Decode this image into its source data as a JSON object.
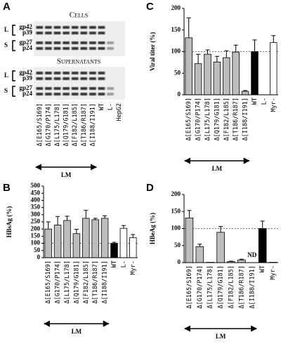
{
  "panel_a": {
    "panel": "A",
    "sections": [
      "Cells",
      "Supernatants"
    ],
    "brackets": [
      "L",
      "S"
    ],
    "markers": [
      "gp42",
      "p39",
      "gp27",
      "p24"
    ],
    "lanes": [
      "Δ[E165/S169]",
      "Δ[G170/P174]",
      "Δ[L175/L178]",
      "Δ[Q179/G181]",
      "Δ[F182/L185]",
      "Δ[T186/R187]",
      "Δ[I188/I191]",
      "WT",
      "L-",
      "HepG2"
    ],
    "group_label": "LM"
  },
  "chart_data": [
    {
      "type": "bar",
      "panel": "B",
      "ylabel": "HBsAg (%)",
      "categories": [
        "Δ[E165/S169]",
        "Δ[G170/P174]",
        "Δ[L175/L178]",
        "Δ[Q179/G181]",
        "Δ[F182/L185]",
        "Δ[T186/R187]",
        "Δ[I188/I191]",
        "WT",
        "L-",
        "Myr-"
      ],
      "values": [
        200,
        228,
        260,
        168,
        275,
        265,
        275,
        100,
        205,
        140
      ],
      "errors": [
        50,
        60,
        30,
        30,
        55,
        10,
        18,
        8,
        20,
        22
      ],
      "colors": [
        "#bdbdbd",
        "#bdbdbd",
        "#bdbdbd",
        "#bdbdbd",
        "#bdbdbd",
        "#bdbdbd",
        "#bdbdbd",
        "#000000",
        "#ffffff",
        "#ffffff"
      ],
      "ylim": [
        0,
        500
      ],
      "yticks": [
        0,
        50,
        100,
        150,
        200,
        250,
        300,
        350,
        400,
        450,
        500
      ],
      "reference_line": 100,
      "group_label": "LM"
    },
    {
      "type": "bar",
      "panel": "C",
      "ylabel": "Viral titer (%)",
      "categories": [
        "Δ[E165/S169]",
        "Δ[G170/P174]",
        "Δ[L175/L178]",
        "Δ[Q179/G181]",
        "Δ[F182/L185]",
        "Δ[T186/R187]",
        "Δ[I188/I191]",
        "WT",
        "L-",
        "Myr-"
      ],
      "values": [
        132,
        72,
        94,
        76,
        86,
        99,
        8,
        100,
        0,
        121
      ],
      "errors": [
        46,
        22,
        10,
        13,
        16,
        16,
        2,
        27,
        null,
        16
      ],
      "colors": [
        "#bdbdbd",
        "#bdbdbd",
        "#bdbdbd",
        "#bdbdbd",
        "#bdbdbd",
        "#bdbdbd",
        "#bdbdbd",
        "#000000",
        "#ffffff",
        "#ffffff"
      ],
      "ylim": [
        0,
        200
      ],
      "yticks": [
        0,
        50,
        100,
        150,
        200
      ],
      "reference_line": 100,
      "group_label": "LM"
    },
    {
      "type": "bar",
      "panel": "D",
      "ylabel": "HBeAg (%)",
      "categories": [
        "Δ[E165/S169]",
        "Δ[G170/P174]",
        "Δ[L175/L178]",
        "Δ[Q179/G181]",
        "Δ[F182/L185]",
        "Δ[T186/R187]",
        "Δ[I188/I191]",
        "WT",
        "Myr-"
      ],
      "values": [
        131,
        47,
        1,
        89,
        3,
        8,
        null,
        100,
        1
      ],
      "errors": [
        22,
        7,
        null,
        17,
        1,
        2,
        null,
        22,
        null
      ],
      "value_labels": [
        null,
        null,
        null,
        null,
        null,
        null,
        "ND",
        null,
        null
      ],
      "colors": [
        "#bdbdbd",
        "#bdbdbd",
        "#bdbdbd",
        "#bdbdbd",
        "#bdbdbd",
        "#bdbdbd",
        "#bdbdbd",
        "#000000",
        "#ffffff"
      ],
      "ylim": [
        0,
        200
      ],
      "yticks": [
        0,
        50,
        100,
        150,
        200
      ],
      "reference_line": 100,
      "group_label": "LM"
    }
  ]
}
